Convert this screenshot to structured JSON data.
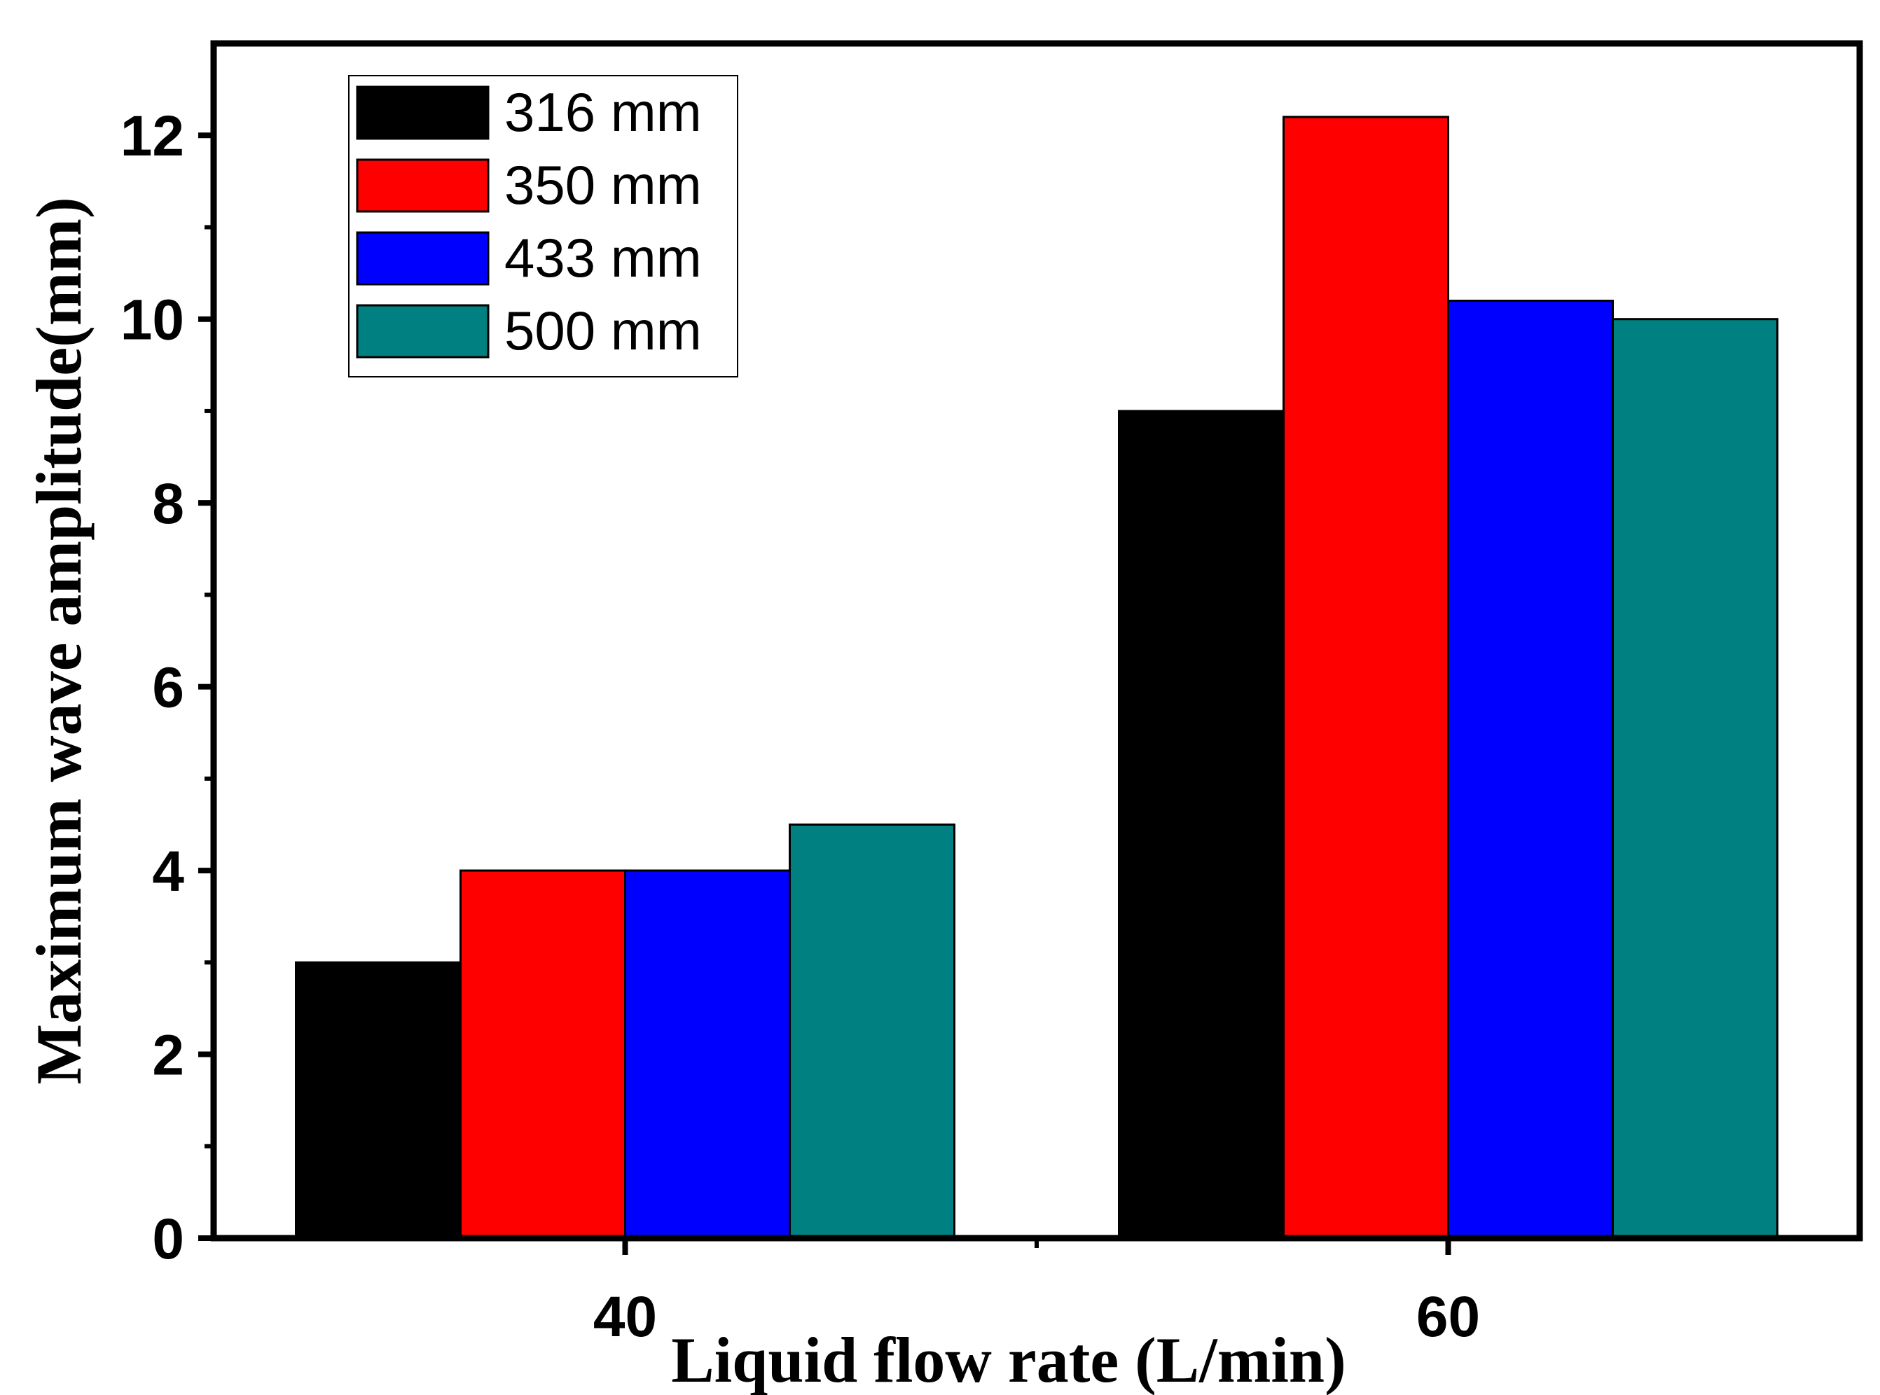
{
  "chart_data": {
    "type": "bar",
    "title": "",
    "xlabel": "Liquid flow rate (L/min)",
    "ylabel": "Maximum wave amplitude(mm)",
    "categories": [
      "40",
      "60"
    ],
    "ylim": [
      0,
      13
    ],
    "yticks": [
      0,
      2,
      4,
      6,
      8,
      10,
      12
    ],
    "ytick_labels": [
      "0",
      "2",
      "4",
      "6",
      "8",
      "10",
      "12"
    ],
    "grid": false,
    "legend_position": "top-left",
    "series": [
      {
        "name": "316 mm",
        "color": "#000000",
        "values": [
          3.0,
          9.0
        ]
      },
      {
        "name": "350 mm",
        "color": "#ff0000",
        "values": [
          4.0,
          12.2
        ]
      },
      {
        "name": "433 mm",
        "color": "#0000ff",
        "values": [
          4.0,
          10.2
        ]
      },
      {
        "name": "500 mm",
        "color": "#008080",
        "values": [
          4.5,
          10.0
        ]
      }
    ]
  }
}
